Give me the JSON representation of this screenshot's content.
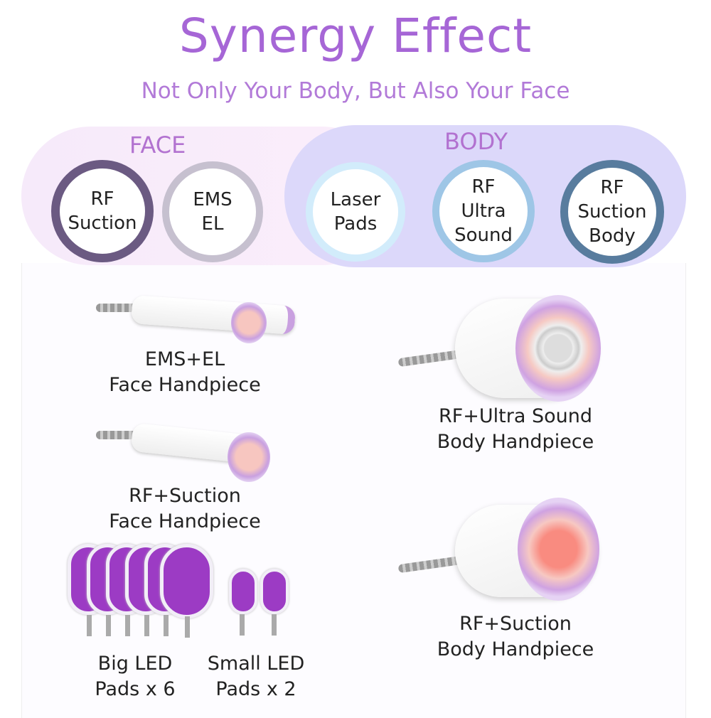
{
  "title": "Synergy Effect",
  "subtitle": "Not Only Your Body, But Also Your Face",
  "face": {
    "label": "FACE",
    "items": [
      {
        "label": "RF\nSuction",
        "color": "#6b5a82"
      },
      {
        "label": "EMS\nEL",
        "color": "#c6c0cf"
      }
    ]
  },
  "body": {
    "label": "BODY",
    "items": [
      {
        "label": "Laser\nPads",
        "color": "#d2ecfb"
      },
      {
        "label": "RF\nUltra\nSound",
        "color": "#9ec6e6"
      },
      {
        "label": "RF\nSuction\nBody",
        "color": "#587c9e"
      }
    ]
  },
  "products": {
    "ems_el_face": "EMS+EL\nFace Handpiece",
    "rf_suction_face": "RF+Suction\nFace Handpiece",
    "big_led": "Big LED\nPads x 6",
    "small_led": "Small LED\nPads x 2",
    "rf_ultra_body": "RF+Ultra Sound\nBody Handpiece",
    "rf_suction_body": "RF+Suction\nBody Handpiece"
  },
  "colors": {
    "accent": "#a666d6",
    "pad": "#9c3bc4"
  }
}
